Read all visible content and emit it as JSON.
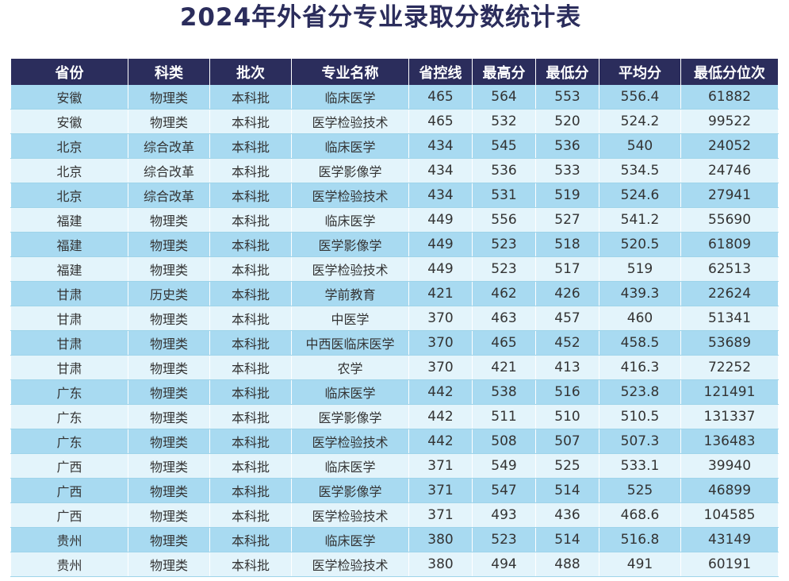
{
  "title": "2024年外省分专业录取分数统计表",
  "table": {
    "headers": [
      "省份",
      "科类",
      "批次",
      "专业名称",
      "省控线",
      "最高分",
      "最低分",
      "平均分",
      "最低分位次"
    ],
    "rows": [
      [
        "安徽",
        "物理类",
        "本科批",
        "临床医学",
        "465",
        "564",
        "553",
        "556.4",
        "61882"
      ],
      [
        "安徽",
        "物理类",
        "本科批",
        "医学检验技术",
        "465",
        "532",
        "520",
        "524.2",
        "99522"
      ],
      [
        "北京",
        "综合改革",
        "本科批",
        "临床医学",
        "434",
        "545",
        "536",
        "540",
        "24052"
      ],
      [
        "北京",
        "综合改革",
        "本科批",
        "医学影像学",
        "434",
        "536",
        "533",
        "534.5",
        "24746"
      ],
      [
        "北京",
        "综合改革",
        "本科批",
        "医学检验技术",
        "434",
        "531",
        "519",
        "524.6",
        "27941"
      ],
      [
        "福建",
        "物理类",
        "本科批",
        "临床医学",
        "449",
        "556",
        "527",
        "541.2",
        "55690"
      ],
      [
        "福建",
        "物理类",
        "本科批",
        "医学影像学",
        "449",
        "523",
        "518",
        "520.5",
        "61809"
      ],
      [
        "福建",
        "物理类",
        "本科批",
        "医学检验技术",
        "449",
        "523",
        "517",
        "519",
        "62513"
      ],
      [
        "甘肃",
        "历史类",
        "本科批",
        "学前教育",
        "421",
        "462",
        "426",
        "439.3",
        "22624"
      ],
      [
        "甘肃",
        "物理类",
        "本科批",
        "中医学",
        "370",
        "463",
        "457",
        "460",
        "51341"
      ],
      [
        "甘肃",
        "物理类",
        "本科批",
        "中西医临床医学",
        "370",
        "465",
        "452",
        "458.5",
        "53689"
      ],
      [
        "甘肃",
        "物理类",
        "本科批",
        "农学",
        "370",
        "421",
        "413",
        "416.3",
        "72252"
      ],
      [
        "广东",
        "物理类",
        "本科批",
        "临床医学",
        "442",
        "538",
        "516",
        "523.8",
        "121491"
      ],
      [
        "广东",
        "物理类",
        "本科批",
        "医学影像学",
        "442",
        "511",
        "510",
        "510.5",
        "131337"
      ],
      [
        "广东",
        "物理类",
        "本科批",
        "医学检验技术",
        "442",
        "508",
        "507",
        "507.3",
        "136483"
      ],
      [
        "广西",
        "物理类",
        "本科批",
        "临床医学",
        "371",
        "549",
        "525",
        "533.1",
        "39940"
      ],
      [
        "广西",
        "物理类",
        "本科批",
        "医学影像学",
        "371",
        "547",
        "514",
        "525",
        "46899"
      ],
      [
        "广西",
        "物理类",
        "本科批",
        "医学检验技术",
        "371",
        "493",
        "436",
        "468.6",
        "104585"
      ],
      [
        "贵州",
        "物理类",
        "本科批",
        "临床医学",
        "380",
        "523",
        "514",
        "516.8",
        "43149"
      ],
      [
        "贵州",
        "物理类",
        "本科批",
        "医学检验技术",
        "380",
        "494",
        "488",
        "491",
        "60191"
      ]
    ]
  }
}
